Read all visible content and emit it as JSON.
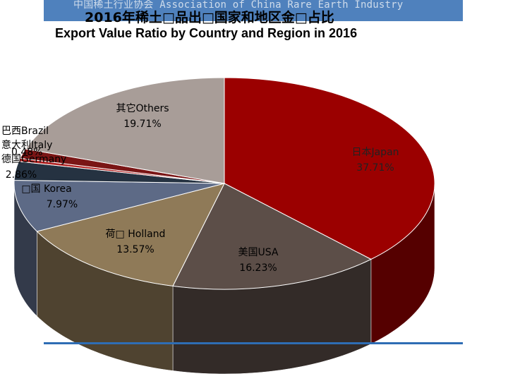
{
  "header": {
    "org": "中国稀土行业协会 Association of China Rare Earth Industry"
  },
  "title_cn": "2016年稀土□品出□国家和地区金□占比",
  "title_en": "Export Value Ratio by Country and Region in 2016",
  "chart_data": {
    "type": "pie",
    "title": "Export Value Ratio by Country and Region in 2016",
    "unit": "%",
    "slices": [
      {
        "label": "日本Japan",
        "value": 37.71,
        "display": "37.71%",
        "color": "#9b0000"
      },
      {
        "label": "美国USA",
        "value": 16.23,
        "display": "16.23%",
        "color": "#5c4e48"
      },
      {
        "label": "荷□ Holland",
        "value": 13.57,
        "display": "13.57%",
        "color": "#8f7a58"
      },
      {
        "label": "□国 Korea",
        "value": 7.97,
        "display": "7.97%",
        "color": "#5d6a86"
      },
      {
        "label": "德国Germany",
        "value": 2.86,
        "display": "2.86%",
        "color": "#253241"
      },
      {
        "label": "意大利Italy",
        "value": 0.48,
        "display": "0.48%",
        "color": "#b22222"
      },
      {
        "label": "巴西Brazil",
        "value": 1.47,
        "display": "",
        "color": "#7a1515"
      },
      {
        "label": "其它Others",
        "value": 19.71,
        "display": "19.71%",
        "color": "#a89d98"
      }
    ]
  }
}
